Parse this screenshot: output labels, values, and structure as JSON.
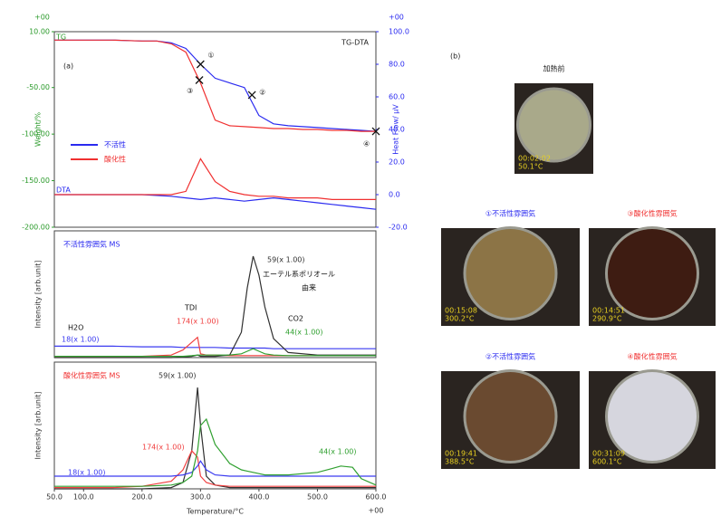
{
  "photos_label": "(b)",
  "photos": [
    {
      "title": "加熱前",
      "time": "00:02:02",
      "temperature": "50.1°C",
      "color": "#a9a98a"
    },
    {
      "title": "①不活性雰囲気",
      "time": "00:15:08",
      "temperature": "300.2°C",
      "color": "#8c7446"
    },
    {
      "title": "③酸化性雰囲気",
      "time": "00:14:51",
      "temperature": "290.9°C",
      "color": "#3e1c12"
    },
    {
      "title": "②不活性雰囲気",
      "time": "00:19:41",
      "temperature": "388.5°C",
      "color": "#6a4a30"
    },
    {
      "title": "④酸化性雰囲気",
      "time": "00:31:09",
      "temperature": "600.1°C",
      "color": "#d6d6de"
    }
  ],
  "chart_data": [
    {
      "type": "line",
      "title": "TG-DTA",
      "panel_label": "(a)",
      "tg_label": "TG",
      "dta_label": "DTA",
      "ylabel": "Weight/%",
      "y2label": "Heat Flow/ μV",
      "y_exponent": "+00",
      "y2_exponent": "+00",
      "xlim": [
        50,
        600
      ],
      "ylim": [
        -200,
        10
      ],
      "y2lim": [
        -20,
        100
      ],
      "yticks": [
        {
          "value": 10,
          "label": "10.00"
        },
        {
          "value": -50,
          "label": "-50.00"
        },
        {
          "value": -100,
          "label": "-100.00"
        },
        {
          "value": -150,
          "label": "-150.00"
        },
        {
          "value": -200,
          "label": "-200.00"
        }
      ],
      "y2ticks": [
        {
          "value": 100,
          "label": "100.0"
        },
        {
          "value": 80,
          "label": "80.0"
        },
        {
          "value": 60,
          "label": "60.0"
        },
        {
          "value": 40,
          "label": "40.0"
        },
        {
          "value": 20,
          "label": "20.0"
        },
        {
          "value": 0,
          "label": "0.0"
        },
        {
          "value": -20,
          "label": "-20.0"
        }
      ],
      "x": [
        50,
        75,
        100,
        125,
        150,
        175,
        200,
        225,
        250,
        275,
        300,
        325,
        350,
        375,
        400,
        425,
        450,
        475,
        500,
        525,
        550,
        575,
        600
      ],
      "series": [
        {
          "name": "不活性",
          "color": "#2a2af0",
          "values": [
            1,
            1,
            1,
            1,
            1,
            0.5,
            0,
            0,
            -2,
            -8,
            -25,
            -40,
            -45,
            -50,
            -80,
            -89,
            -91,
            -92,
            -93,
            -94,
            -95,
            -96,
            -97
          ]
        },
        {
          "name": "酸化性",
          "color": "#f03030",
          "values": [
            1,
            1,
            1,
            1,
            1,
            0.5,
            0,
            0,
            -3,
            -12,
            -45,
            -85,
            -91,
            -92,
            -93,
            -94,
            -94,
            -95,
            -95,
            -96,
            -96,
            -97,
            -97
          ]
        },
        {
          "color": "#2a2af0",
          "axis": "y2",
          "values": [
            0,
            0,
            0,
            0,
            0,
            0,
            0,
            -0.5,
            -1,
            -2,
            -3,
            -2,
            -3,
            -4,
            -3,
            -2,
            -3,
            -4,
            -5,
            -6,
            -7,
            -8,
            -9
          ]
        },
        {
          "color": "#f03030",
          "axis": "y2",
          "values": [
            0,
            0,
            0,
            0,
            0,
            0,
            0,
            0,
            0,
            2,
            22,
            8,
            2,
            0,
            -1,
            -1,
            -2,
            -2,
            -2,
            -3,
            -3,
            -3,
            -3
          ]
        }
      ],
      "markers": [
        {
          "label": "①",
          "x": 300,
          "y": -25
        },
        {
          "label": "②",
          "x": 388,
          "y": -58
        },
        {
          "label": "③",
          "x": 298,
          "y": -42
        },
        {
          "label": "④",
          "x": 600,
          "y": -97
        }
      ]
    },
    {
      "type": "line",
      "title": "不活性雰囲気 MS",
      "ylabel": "Intensity [arb.unit]",
      "xlim": [
        50,
        600
      ],
      "ylim": [
        0,
        100
      ],
      "x": [
        50,
        100,
        150,
        200,
        250,
        270,
        285,
        295,
        300,
        310,
        325,
        350,
        370,
        380,
        390,
        400,
        410,
        425,
        450,
        500,
        525,
        540,
        560,
        575,
        600
      ],
      "series": [
        {
          "name": "18(x 1.00)",
          "color": "#3a3af0",
          "values": [
            9,
            9,
            9,
            8.5,
            8.5,
            8,
            8,
            8,
            8,
            8,
            8,
            7.5,
            7.5,
            7.5,
            7.5,
            7.5,
            7.5,
            7,
            7,
            7,
            7,
            7,
            7,
            7,
            7
          ]
        },
        {
          "name": "174(x 1.00)",
          "color": "#f04040",
          "values": [
            1,
            1,
            1,
            1,
            2,
            6,
            12,
            16,
            3,
            2,
            2,
            1.5,
            1.5,
            1.5,
            1.5,
            1.5,
            1.5,
            1.5,
            1.5,
            1.5,
            1.5,
            1.5,
            1.5,
            1.5,
            1.5
          ]
        },
        {
          "name": "59(x 1.00)",
          "color": "#303030",
          "values": [
            0,
            0,
            0,
            0,
            0,
            0.5,
            1,
            2,
            1,
            1,
            1,
            2,
            20,
            55,
            80,
            65,
            40,
            15,
            4,
            2,
            2,
            2,
            2,
            2,
            2
          ]
        },
        {
          "name": "44(x 1.00)",
          "color": "#30a030",
          "values": [
            1,
            1,
            1,
            1,
            1,
            1,
            1.5,
            2,
            2,
            2,
            2,
            2,
            3,
            5,
            7,
            5,
            3,
            2,
            1.5,
            1.5,
            1.5,
            1.5,
            1.5,
            1.5,
            1.5
          ]
        }
      ],
      "annotations": [
        "H2O",
        "TDI",
        "エーテル系ポリオール",
        "由来",
        "CO2"
      ]
    },
    {
      "type": "line",
      "title": "酸化性雰囲気 MS",
      "ylabel": "Intensity [arb.unit]",
      "xlabel": "Temperature/°C",
      "x_exponent": "+00",
      "xlim": [
        50,
        600
      ],
      "ylim": [
        0,
        100
      ],
      "xticks": [
        {
          "value": 50,
          "label": "50.0"
        },
        {
          "value": 100,
          "label": "100.0"
        },
        {
          "value": 200,
          "label": "200.0"
        },
        {
          "value": 300,
          "label": "300.0"
        },
        {
          "value": 400,
          "label": "400.0"
        },
        {
          "value": 500,
          "label": "500.0"
        },
        {
          "value": 600,
          "label": "600.0"
        }
      ],
      "x": [
        50,
        100,
        150,
        200,
        250,
        270,
        285,
        295,
        300,
        310,
        325,
        350,
        370,
        380,
        390,
        400,
        410,
        425,
        450,
        500,
        525,
        540,
        560,
        575,
        600
      ],
      "series": [
        {
          "name": "59(x 1.00)",
          "color": "#303030",
          "values": [
            0,
            0,
            0,
            0,
            1,
            5,
            30,
            80,
            50,
            10,
            3,
            1,
            1,
            1,
            1,
            1,
            1,
            1,
            1,
            1,
            1,
            1,
            1,
            1,
            1
          ]
        },
        {
          "name": "174(x 1.00)",
          "color": "#f04040",
          "values": [
            1,
            1,
            1,
            2,
            6,
            15,
            30,
            25,
            10,
            5,
            3,
            2,
            2,
            2,
            2,
            2,
            2,
            2,
            2,
            2,
            2,
            2,
            2,
            2,
            2
          ]
        },
        {
          "name": "18(x 1.00)",
          "color": "#3a3af0",
          "values": [
            10,
            10,
            10,
            10,
            10,
            11,
            13,
            18,
            22,
            15,
            11,
            10,
            10,
            10,
            10,
            10,
            10,
            10,
            10,
            10,
            10,
            10,
            10,
            10,
            10
          ]
        },
        {
          "name": "44(x 1.00)",
          "color": "#30a030",
          "values": [
            2,
            2,
            2,
            2,
            3,
            5,
            10,
            30,
            50,
            55,
            35,
            20,
            15,
            14,
            13,
            12,
            11,
            11,
            11,
            13,
            16,
            18,
            17,
            8,
            3
          ]
        }
      ]
    }
  ]
}
